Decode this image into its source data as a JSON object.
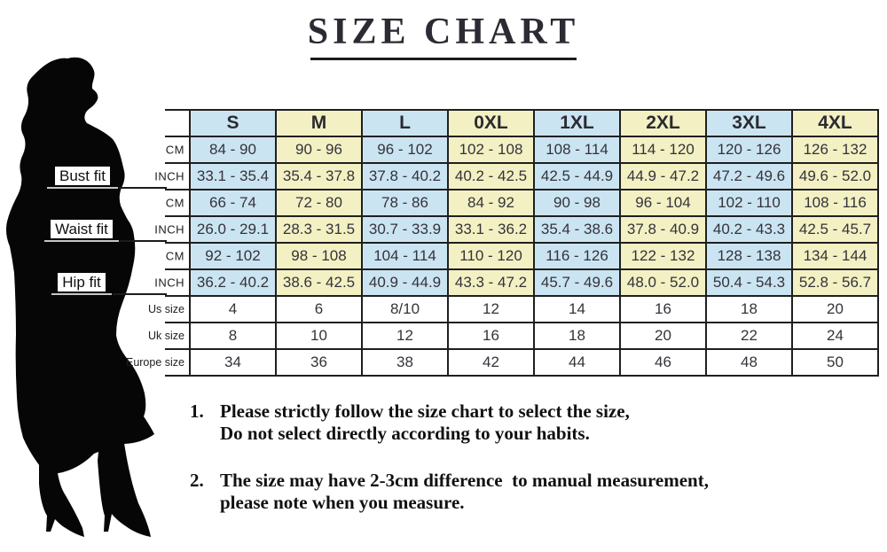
{
  "page": {
    "title": "SIZE CHART"
  },
  "colors": {
    "column_blue": "#cbe4f2",
    "column_yellow": "#f3f0c3",
    "border": "#1f1f1f",
    "fit_underline_gray": "#c6c6c6"
  },
  "icons": {
    "silhouette": "woman-figure-silhouette"
  },
  "size_chart": {
    "sizes": [
      "S",
      "M",
      "L",
      "0XL",
      "1XL",
      "2XL",
      "3XL",
      "4XL"
    ],
    "measurements": [
      {
        "fit_label": "Bust fit",
        "rows": [
          {
            "unit": "CM",
            "values": [
              "84 - 90",
              "90 - 96",
              "96 - 102",
              "102 - 108",
              "108 - 114",
              "114 - 120",
              "120 - 126",
              "126 - 132"
            ]
          },
          {
            "unit": "INCH",
            "values": [
              "33.1 - 35.4",
              "35.4 - 37.8",
              "37.8 - 40.2",
              "40.2 - 42.5",
              "42.5 - 44.9",
              "44.9 - 47.2",
              "47.2 - 49.6",
              "49.6 - 52.0"
            ]
          }
        ]
      },
      {
        "fit_label": "Waist fit",
        "rows": [
          {
            "unit": "CM",
            "values": [
              "66 - 74",
              "72 - 80",
              "78 - 86",
              "84 - 92",
              "90 - 98",
              "96 - 104",
              "102 - 110",
              "108 - 116"
            ]
          },
          {
            "unit": "INCH",
            "values": [
              "26.0 - 29.1",
              "28.3 - 31.5",
              "30.7 - 33.9",
              "33.1 - 36.2",
              "35.4 - 38.6",
              "37.8 - 40.9",
              "40.2 - 43.3",
              "42.5 - 45.7"
            ]
          }
        ]
      },
      {
        "fit_label": "Hip fit",
        "rows": [
          {
            "unit": "CM",
            "values": [
              "92 - 102",
              "98 - 108",
              "104 - 114",
              "110 - 120",
              "116 - 126",
              "122 - 132",
              "128 - 138",
              "134 - 144"
            ]
          },
          {
            "unit": "INCH",
            "values": [
              "36.2 - 40.2",
              "38.6 - 42.5",
              "40.9 - 44.9",
              "43.3 - 47.2",
              "45.7 - 49.6",
              "48.0 - 52.0",
              "50.4 - 54.3",
              "52.8 - 56.7"
            ]
          }
        ]
      }
    ],
    "conversions": [
      {
        "label": "Us size",
        "values": [
          "4",
          "6",
          "8/10",
          "12",
          "14",
          "16",
          "18",
          "20"
        ]
      },
      {
        "label": "Uk size",
        "values": [
          "8",
          "10",
          "12",
          "16",
          "18",
          "20",
          "22",
          "24"
        ]
      },
      {
        "label": "Europe size",
        "values": [
          "34",
          "36",
          "38",
          "42",
          "44",
          "46",
          "48",
          "50"
        ]
      }
    ]
  },
  "notes": [
    {
      "number": "1.",
      "line1": "Please strictly follow the size chart to select the size,",
      "line2": "Do not select directly according to your habits."
    },
    {
      "number": "2.",
      "line1": "The size may have 2-3cm difference  to manual measurement,",
      "line2": "please note when you measure."
    }
  ]
}
